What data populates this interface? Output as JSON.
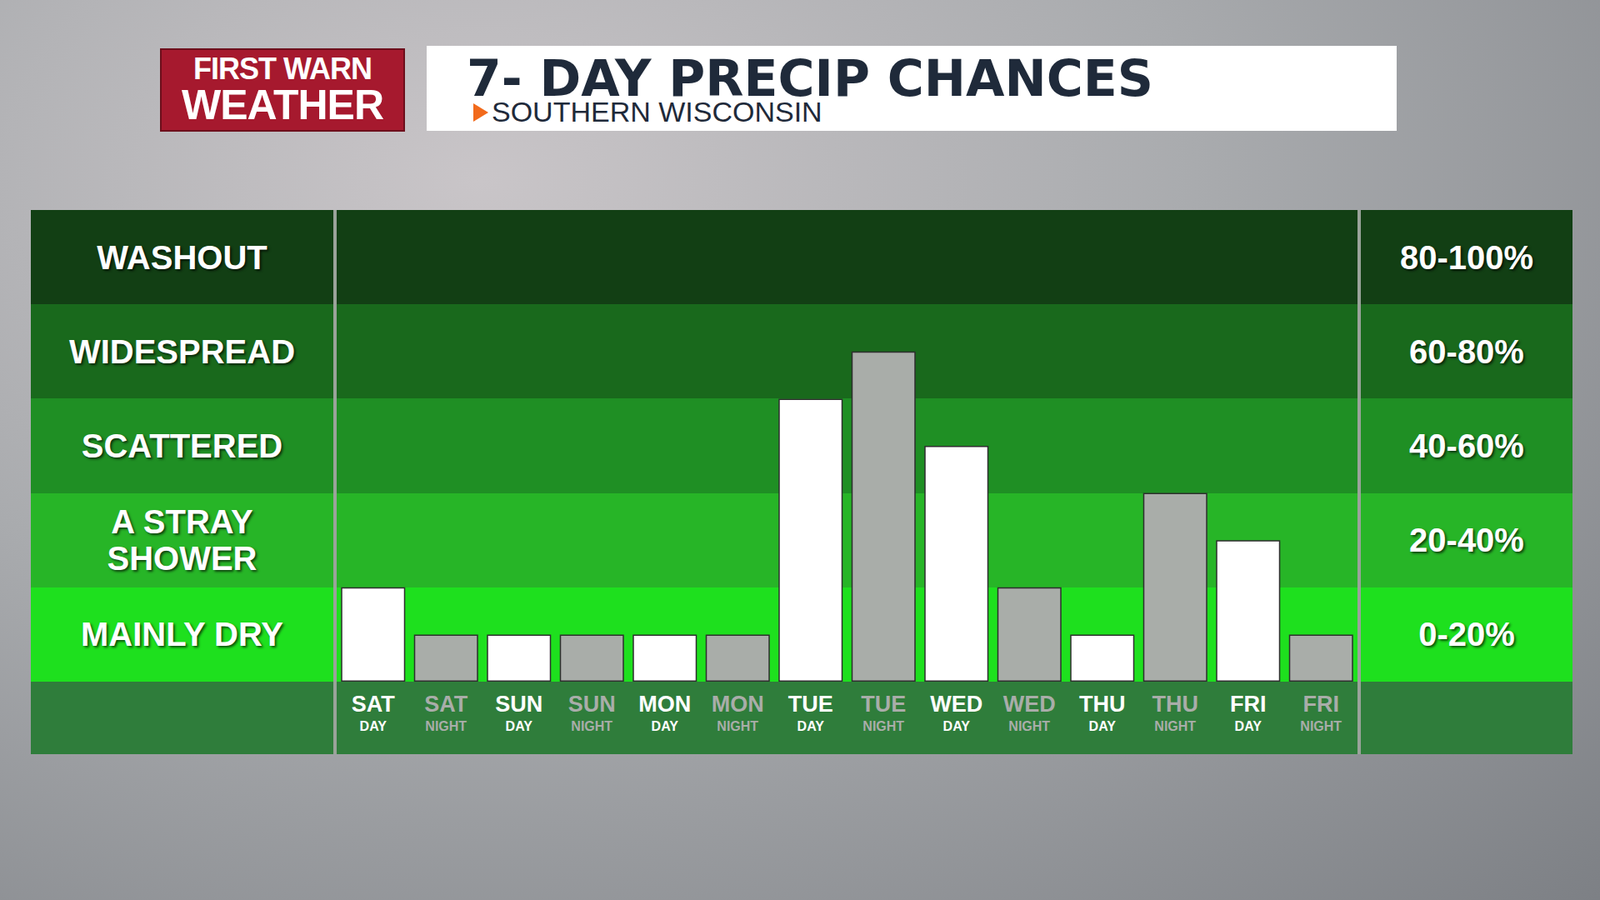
{
  "header": {
    "logo": [
      "FIRST WARN",
      "WEATHER"
    ]
  },
  "chart_data": {
    "type": "bar",
    "title": "7- DAY PRECIP CHANCES",
    "subtitle": "SOUTHERN WISCONSIN",
    "categories": [
      "SAT DAY",
      "SAT NIGHT",
      "SUN DAY",
      "SUN NIGHT",
      "MON DAY",
      "MON NIGHT",
      "TUE DAY",
      "TUE NIGHT",
      "WED DAY",
      "WED NIGHT",
      "THU DAY",
      "THU NIGHT",
      "FRI DAY",
      "FRI NIGHT"
    ],
    "values": [
      20,
      10,
      10,
      10,
      10,
      10,
      60,
      70,
      50,
      20,
      10,
      40,
      30,
      10
    ],
    "colors": [
      "#ffffff",
      "#a9ada9",
      "#ffffff",
      "#a9ada9",
      "#ffffff",
      "#a9ada9",
      "#ffffff",
      "#a9ada9",
      "#ffffff",
      "#a9ada9",
      "#ffffff",
      "#a9ada9",
      "#ffffff",
      "#a9ada9"
    ],
    "ylim": [
      0,
      100
    ],
    "yticks": [
      0,
      20,
      40,
      60,
      80,
      100
    ],
    "grid": false,
    "tick_labels": "x",
    "bands": [
      {
        "label": "MAINLY DRY",
        "range_label": "0-20%"
      },
      {
        "label": "A STRAY SHOWER",
        "range_label": "20-40%"
      },
      {
        "label": "SCATTERED",
        "range_label": "40-60%"
      },
      {
        "label": "WIDESPREAD",
        "range_label": "60-80%"
      },
      {
        "label": "WASHOUT",
        "range_label": "80-100%"
      }
    ]
  }
}
